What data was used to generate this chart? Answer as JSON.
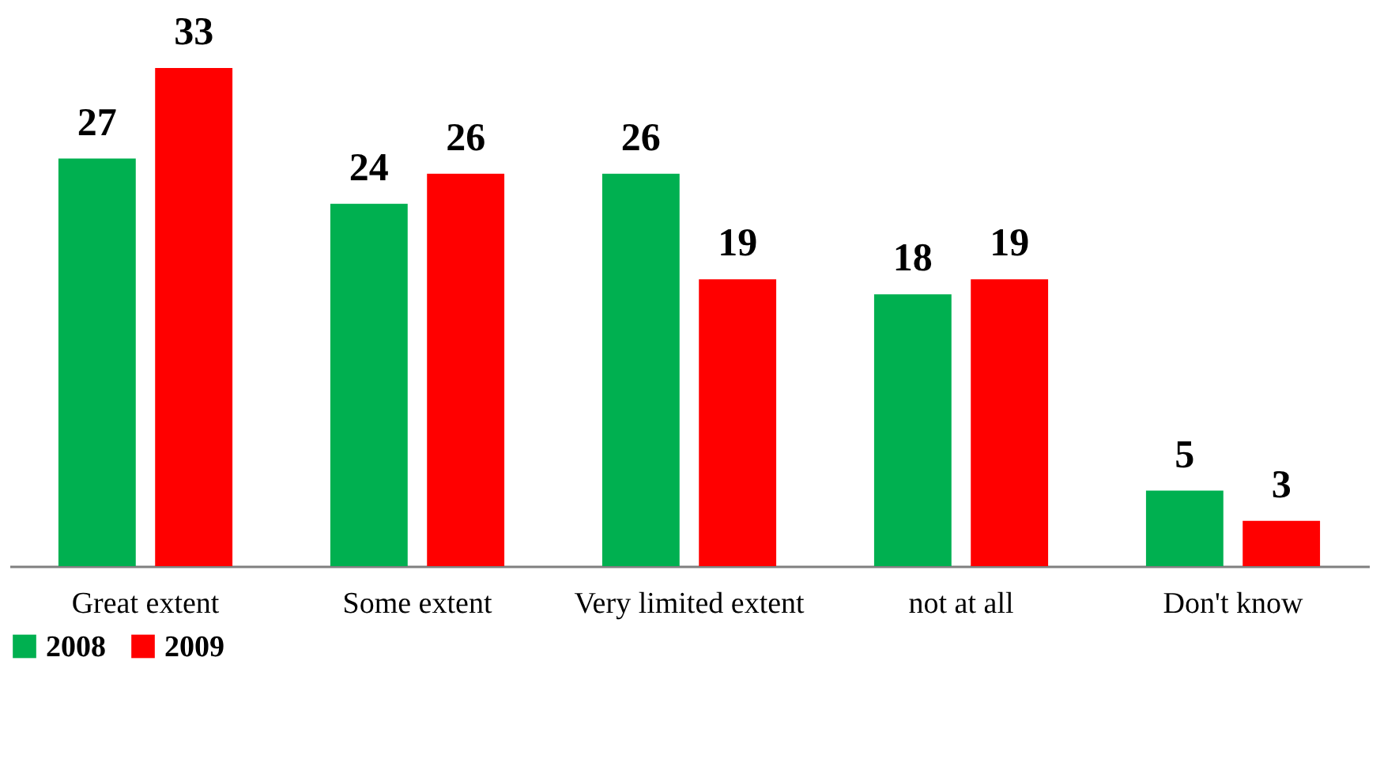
{
  "chart_data": {
    "type": "bar",
    "categories": [
      "Great extent",
      "Some extent",
      "Very limited extent",
      "not at all",
      "Don't know"
    ],
    "series": [
      {
        "name": "2008",
        "color": "#00b050",
        "values": [
          27,
          24,
          26,
          18,
          5
        ]
      },
      {
        "name": "2009",
        "color": "#ff0000",
        "values": [
          33,
          26,
          19,
          19,
          3
        ]
      }
    ],
    "data_labels": true,
    "legend": "bottom",
    "grid": false
  }
}
